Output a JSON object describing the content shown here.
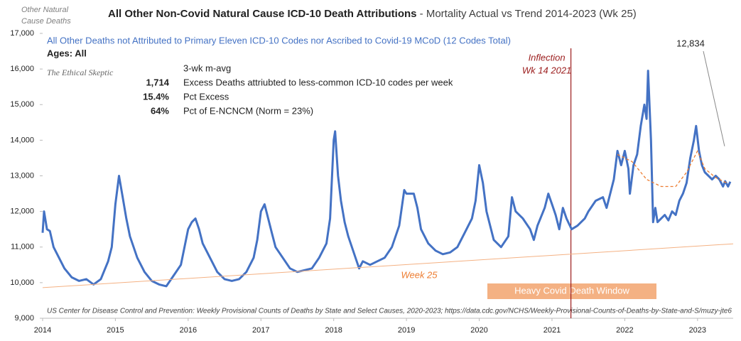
{
  "chart_data": {
    "type": "line",
    "corner_note": [
      "Other Natural",
      "Cause Deaths"
    ],
    "title": "All Other Non-Covid Natural Cause ICD-10 Death Attributions",
    "title_suffix": "- Mortality Actual vs Trend  2014-2023 (Wk 25)",
    "subtitle": "All Other Deaths not Attributed to Primary Eleven ICD-10 Codes nor Ascribed to Covid-19 MCoD (12 Codes Total)",
    "ages": "Ages: All",
    "watermark": "The Ethical Skeptic",
    "stats_header": "3-wk m-avg",
    "stats": [
      {
        "value": "1,714",
        "text": "Excess Deaths attriubted to less-common ICD-10 codes per week"
      },
      {
        "value": "15.4%",
        "text": "Pct Excess"
      },
      {
        "value": "64%",
        "text": "Pct of E-NCNCM (Norm = 23%)"
      }
    ],
    "inflection": {
      "x": 2021.26,
      "label": [
        "Inflection",
        "Wk 14 2021"
      ]
    },
    "week_label": "Week 25",
    "window_label": "Heavy Covid Death Window",
    "source": "US Center for Disease Control and Prevention: Weekly Provisional Counts of Deaths by State and Select Causes, 2020-2023; https://data.cdc.gov/NCHS/Weekly-Provisional-Counts-of-Deaths-by-State-and-S/muzy-jte6",
    "end_label": {
      "value": 12834,
      "label": "12,834"
    },
    "xlim": [
      2014,
      2023.49
    ],
    "xticks": [
      2014,
      2015,
      2016,
      2017,
      2018,
      2019,
      2020,
      2021,
      2022,
      2023
    ],
    "ylim": [
      9000,
      17000
    ],
    "yticks": [
      {
        "value": 9000,
        "label": "9,000"
      },
      {
        "value": 10000,
        "label": "10,000"
      },
      {
        "value": 11000,
        "label": "11,000"
      },
      {
        "value": 12000,
        "label": "12,000"
      },
      {
        "value": 13000,
        "label": "13,000"
      },
      {
        "value": 14000,
        "label": "14,000"
      },
      {
        "value": 15000,
        "label": "15,000"
      },
      {
        "value": 16000,
        "label": "16,000"
      },
      {
        "value": 17000,
        "label": "17,000"
      }
    ],
    "series": [
      {
        "color": "#4472c4",
        "width": 3,
        "dashed": false,
        "x": [
          2014.0,
          2014.02,
          2014.06,
          2014.1,
          2014.15,
          2014.2,
          2014.3,
          2014.4,
          2014.5,
          2014.6,
          2014.7,
          2014.8,
          2014.9,
          2014.95,
          2015.0,
          2015.05,
          2015.1,
          2015.15,
          2015.2,
          2015.3,
          2015.4,
          2015.5,
          2015.6,
          2015.7,
          2015.8,
          2015.9,
          2015.95,
          2016.0,
          2016.05,
          2016.1,
          2016.15,
          2016.2,
          2016.3,
          2016.4,
          2016.5,
          2016.6,
          2016.7,
          2016.8,
          2016.9,
          2016.95,
          2017.0,
          2017.05,
          2017.1,
          2017.15,
          2017.2,
          2017.3,
          2017.4,
          2017.5,
          2017.6,
          2017.7,
          2017.8,
          2017.9,
          2017.95,
          2018.0,
          2018.02,
          2018.06,
          2018.1,
          2018.15,
          2018.2,
          2018.3,
          2018.35,
          2018.4,
          2018.5,
          2018.6,
          2018.7,
          2018.8,
          2018.9,
          2018.97,
          2019.0,
          2019.1,
          2019.15,
          2019.2,
          2019.3,
          2019.4,
          2019.5,
          2019.6,
          2019.7,
          2019.8,
          2019.9,
          2019.95,
          2020.0,
          2020.05,
          2020.1,
          2020.2,
          2020.3,
          2020.4,
          2020.45,
          2020.5,
          2020.6,
          2020.7,
          2020.75,
          2020.8,
          2020.9,
          2020.95,
          2021.0,
          2021.05,
          2021.1,
          2021.15,
          2021.2,
          2021.27,
          2021.35,
          2021.45,
          2021.5,
          2021.6,
          2021.7,
          2021.75,
          2021.8,
          2021.85,
          2021.9,
          2021.95,
          2022.0,
          2022.05,
          2022.07,
          2022.12,
          2022.17,
          2022.22,
          2022.27,
          2022.3,
          2022.32,
          2022.36,
          2022.39,
          2022.42,
          2022.45,
          2022.5,
          2022.55,
          2022.6,
          2022.65,
          2022.7,
          2022.75,
          2022.8,
          2022.85,
          2022.9,
          2022.95,
          2022.98,
          2023.02,
          2023.06,
          2023.1,
          2023.15,
          2023.2,
          2023.25,
          2023.3,
          2023.35,
          2023.38,
          2023.42,
          2023.45
        ],
        "values": [
          11400,
          12000,
          11500,
          11450,
          11000,
          10800,
          10400,
          10150,
          10050,
          10100,
          9950,
          10100,
          10600,
          11000,
          12200,
          13000,
          12400,
          11800,
          11300,
          10700,
          10300,
          10050,
          9950,
          9900,
          10200,
          10500,
          11000,
          11500,
          11700,
          11800,
          11500,
          11100,
          10700,
          10300,
          10100,
          10050,
          10100,
          10300,
          10700,
          11200,
          12000,
          12200,
          11800,
          11400,
          11000,
          10700,
          10400,
          10300,
          10350,
          10400,
          10700,
          11100,
          11800,
          14000,
          14250,
          13000,
          12300,
          11700,
          11300,
          10700,
          10400,
          10600,
          10500,
          10600,
          10700,
          11000,
          11600,
          12600,
          12500,
          12500,
          12100,
          11500,
          11100,
          10900,
          10800,
          10850,
          11000,
          11400,
          11800,
          12300,
          13300,
          12800,
          12000,
          11200,
          11000,
          11300,
          12400,
          12000,
          11800,
          11500,
          11200,
          11600,
          12100,
          12500,
          12200,
          11900,
          11500,
          12100,
          11800,
          11500,
          11600,
          11800,
          12000,
          12300,
          12400,
          12100,
          12500,
          12900,
          13700,
          13300,
          13700,
          13200,
          12500,
          13300,
          13600,
          14400,
          15000,
          14600,
          15950,
          14000,
          11700,
          12100,
          11700,
          11800,
          11900,
          11750,
          12000,
          11900,
          12300,
          12500,
          12800,
          13500,
          14000,
          14400,
          13700,
          13300,
          13100,
          13000,
          12900,
          13000,
          12900,
          12700,
          12850,
          12700,
          12834
        ]
      },
      {
        "color": "#f4b183",
        "width": 1,
        "dashed": false,
        "x": [
          2014,
          2023.49
        ],
        "values": [
          9860,
          11090
        ]
      },
      {
        "color": "#ed7d31",
        "width": 1.3,
        "dashed": true,
        "x": [
          2021.9,
          2022.1,
          2022.3,
          2022.5,
          2022.7,
          2022.85,
          2023.0,
          2023.1,
          2023.25,
          2023.4
        ],
        "values": [
          13600,
          13400,
          12900,
          12700,
          12700,
          13100,
          13700,
          13200,
          12950,
          12800
        ]
      }
    ]
  }
}
